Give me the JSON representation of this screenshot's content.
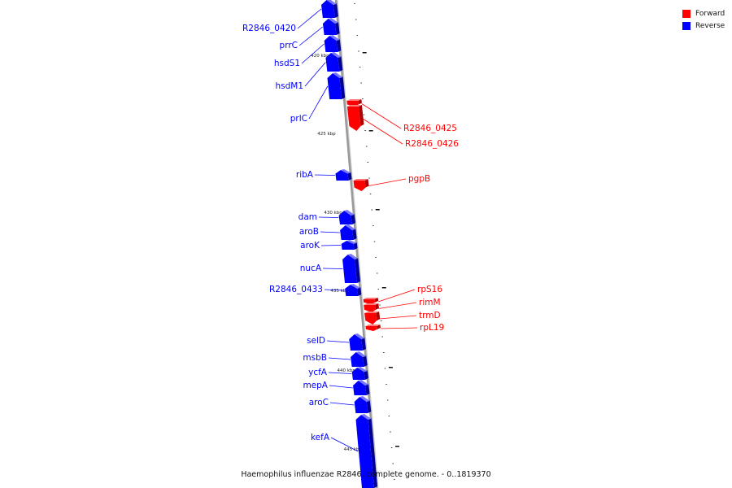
{
  "caption": "Haemophilus influenzae R2846, complete genome. - 0..1819370",
  "legend": [
    {
      "label": "Forward",
      "color": "#ff0000"
    },
    {
      "label": "Reverse",
      "color": "#0000ff"
    }
  ],
  "colors": {
    "forward": "#ff0000",
    "reverse": "#0000ff",
    "backbone": "#999999"
  },
  "ticks": [
    {
      "label": "420 kbp"
    },
    {
      "label": "425 kbp"
    },
    {
      "label": "430 kbp"
    },
    {
      "label": "435 kbp"
    },
    {
      "label": "440 kbp"
    },
    {
      "label": "445 kbp"
    }
  ],
  "genes": [
    {
      "name": "R2846_0420",
      "strand": "reverse"
    },
    {
      "name": "prrC",
      "strand": "reverse"
    },
    {
      "name": "hsdS1",
      "strand": "reverse"
    },
    {
      "name": "hsdM1",
      "strand": "reverse"
    },
    {
      "name": "prlC",
      "strand": "reverse"
    },
    {
      "name": "R2846_0425",
      "strand": "forward"
    },
    {
      "name": "R2846_0426",
      "strand": "forward"
    },
    {
      "name": "ribA",
      "strand": "reverse"
    },
    {
      "name": "pgpB",
      "strand": "forward"
    },
    {
      "name": "dam",
      "strand": "reverse"
    },
    {
      "name": "aroB",
      "strand": "reverse"
    },
    {
      "name": "aroK",
      "strand": "reverse"
    },
    {
      "name": "nucA",
      "strand": "reverse"
    },
    {
      "name": "R2846_0433",
      "strand": "reverse"
    },
    {
      "name": "rpS16",
      "strand": "forward"
    },
    {
      "name": "rimM",
      "strand": "forward"
    },
    {
      "name": "trmD",
      "strand": "forward"
    },
    {
      "name": "rpL19",
      "strand": "forward"
    },
    {
      "name": "selD",
      "strand": "reverse"
    },
    {
      "name": "msbB",
      "strand": "reverse"
    },
    {
      "name": "ycfA",
      "strand": "reverse"
    },
    {
      "name": "mepA",
      "strand": "reverse"
    },
    {
      "name": "aroC",
      "strand": "reverse"
    },
    {
      "name": "kefA",
      "strand": "reverse"
    }
  ]
}
